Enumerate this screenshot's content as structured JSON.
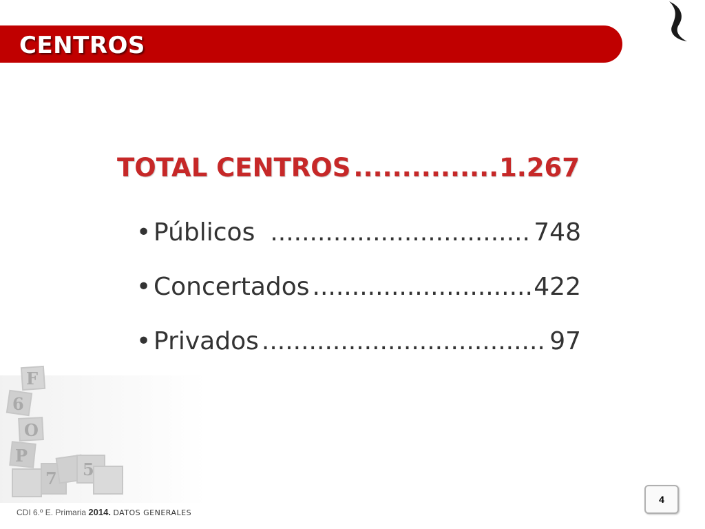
{
  "header": {
    "title": "CENTROS",
    "accent_color": "#c00000",
    "logo_icon": "brand-swirl-icon"
  },
  "summary": {
    "total_label": "TOTAL CENTROS",
    "total_value": "1.267",
    "items": [
      {
        "label": "Públicos",
        "value": "748"
      },
      {
        "label": "Concertados",
        "value": "422"
      },
      {
        "label": "Privados",
        "value": "97"
      }
    ],
    "bullet": "•"
  },
  "decoration": {
    "image": "alphabet-blocks-illustration"
  },
  "footer": {
    "prefix": "CDI 6.º E. Primaria",
    "year": "2014.",
    "section": "DATOS GENERALES",
    "page_number": "4"
  }
}
